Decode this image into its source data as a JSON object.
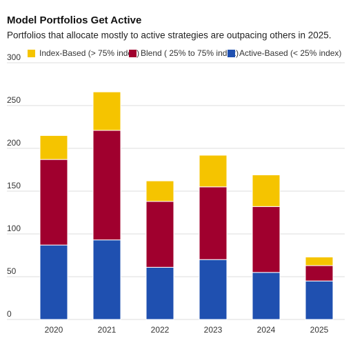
{
  "chart_data": {
    "type": "stacked_bar",
    "title": "Model Portfolios Get Active",
    "subtitle": "Portfolios that allocate mostly to active strategies are outpacing others in 2025.",
    "categories": [
      "2020",
      "2021",
      "2022",
      "2023",
      "2024",
      "2025"
    ],
    "series": [
      {
        "name": "Active-Based (< 25% index)",
        "color": "#1f50b0",
        "values": [
          87,
          93,
          61,
          70,
          55,
          45
        ]
      },
      {
        "name": "Blend ( 25% to 75% index)",
        "color": "#a0002e",
        "values": [
          100,
          128,
          77,
          85,
          77,
          18
        ]
      },
      {
        "name": "Index-Based (> 75% index)",
        "color": "#f5c400",
        "values": [
          28,
          45,
          24,
          37,
          37,
          10
        ]
      }
    ],
    "legend_order": [
      2,
      1,
      0
    ],
    "ylim": [
      0,
      300
    ],
    "yticks": [
      0,
      50,
      100,
      150,
      200,
      250,
      300
    ],
    "grid": true
  }
}
